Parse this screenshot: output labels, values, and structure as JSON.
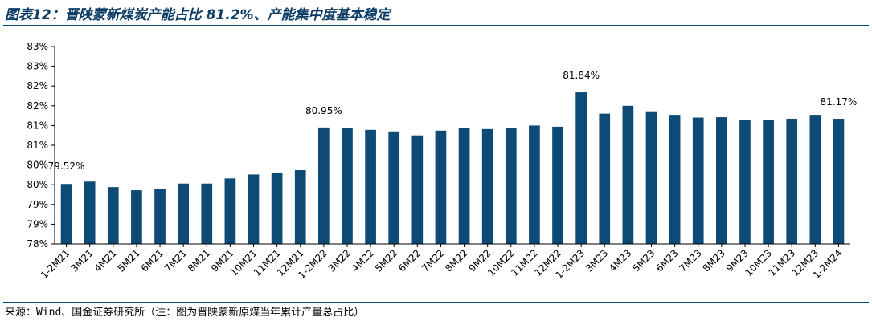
{
  "title": "图表12：晋陕蒙新煤炭产能占比 81.2%、产能集中度基本稳定",
  "source": "来源：Wind、国金证券研究所（注：图为晋陕蒙新原煤当年累计产量总占比）",
  "colors": {
    "bar": "#0d4a75",
    "rule": "#0d4a78",
    "title": "#0d3d66"
  },
  "chart_data": {
    "type": "bar",
    "categories": [
      "1-2M21",
      "3M21",
      "4M21",
      "5M21",
      "6M21",
      "7M21",
      "8M21",
      "9M21",
      "10M21",
      "11M21",
      "12M21",
      "1-2M22",
      "3M22",
      "4M22",
      "5M22",
      "6M22",
      "7M22",
      "8M22",
      "9M22",
      "10M22",
      "11M22",
      "12M22",
      "1-2M23",
      "3M23",
      "4M23",
      "5M23",
      "6M23",
      "7M23",
      "8M23",
      "9M23",
      "10M23",
      "11M23",
      "12M23",
      "1-2M24"
    ],
    "values": [
      79.52,
      79.58,
      79.44,
      79.36,
      79.39,
      79.53,
      79.53,
      79.66,
      79.76,
      79.8,
      79.87,
      80.95,
      80.93,
      80.89,
      80.85,
      80.75,
      80.87,
      80.94,
      80.91,
      80.94,
      81.0,
      80.97,
      81.84,
      81.3,
      81.5,
      81.36,
      81.27,
      81.2,
      81.21,
      81.14,
      81.15,
      81.17,
      81.27,
      81.17
    ],
    "ylim": [
      78.0,
      83.0
    ],
    "y_ticks": [
      78.0,
      78.5,
      79.0,
      79.5,
      80.0,
      80.5,
      81.0,
      81.5,
      82.0,
      82.5,
      83.0
    ],
    "y_tick_labels": [
      "78%",
      "79%",
      "79%",
      "80%",
      "80%",
      "81%",
      "81%",
      "82%",
      "82%",
      "83%",
      "83%"
    ],
    "data_labels": [
      {
        "index": 0,
        "text": "79.52%"
      },
      {
        "index": 11,
        "text": "80.95%"
      },
      {
        "index": 22,
        "text": "81.84%"
      },
      {
        "index": 33,
        "text": "81.17%"
      }
    ],
    "grid": false,
    "legend": "none",
    "xlabel": "",
    "ylabel": ""
  }
}
